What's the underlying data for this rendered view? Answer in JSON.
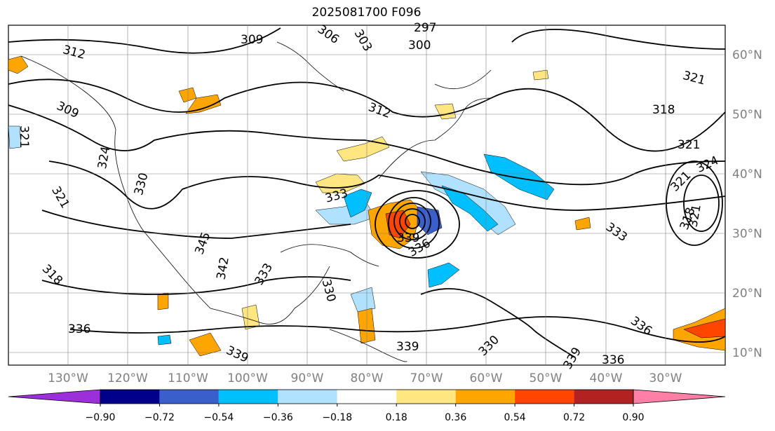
{
  "title": "2025081700 F096",
  "lon_labels": [
    "130°W",
    "120°W",
    "110°W",
    "100°W",
    "90°W",
    "80°W",
    "70°W",
    "60°W",
    "50°W",
    "40°W",
    "30°W"
  ],
  "lat_labels": [
    "60°N",
    "50°N",
    "40°N",
    "30°N",
    "20°N",
    "10°N"
  ],
  "contour_labels": [
    "309",
    "306",
    "303",
    "297",
    "300",
    "312",
    "309",
    "321",
    "312",
    "321",
    "318",
    "321",
    "324",
    "321",
    "318",
    "321",
    "333",
    "336",
    "330",
    "324",
    "321",
    "318",
    "345",
    "342",
    "333",
    "330",
    "336",
    "339",
    "336",
    "339",
    "330",
    "333",
    "339",
    "336",
    "339"
  ],
  "colorbar": {
    "ticks": [
      "−0.90",
      "−0.72",
      "−0.54",
      "−0.36",
      "−0.18",
      "0.18",
      "0.36",
      "0.54",
      "0.72",
      "0.90"
    ],
    "colors": [
      "#9b30d9",
      "#00008b",
      "#3a5fcd",
      "#00bfff",
      "#b0e2ff",
      "#ffffff",
      "#ffe680",
      "#ffa500",
      "#ff4500",
      "#b22222",
      "#ff7fa6"
    ]
  }
}
